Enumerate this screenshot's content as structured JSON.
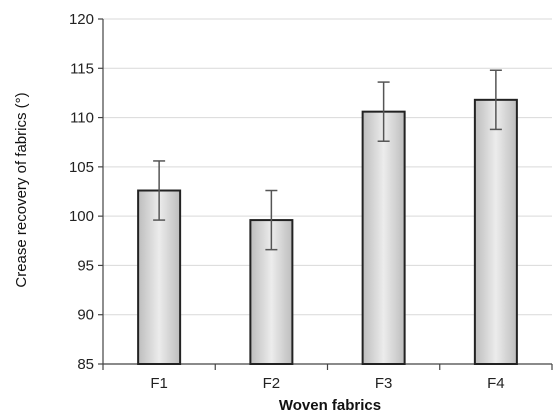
{
  "chart_data": {
    "type": "bar",
    "categories": [
      "F1",
      "F2",
      "F3",
      "F4"
    ],
    "values": [
      102.6,
      99.6,
      110.6,
      111.8
    ],
    "error": [
      3.0,
      3.0,
      3.0,
      3.0
    ],
    "title": "",
    "xlabel": "Woven fabrics",
    "ylabel": "Crease recovery of fabrics (°)",
    "ylim": [
      85,
      120
    ],
    "yticks": [
      85,
      90,
      95,
      100,
      105,
      110,
      115,
      120
    ],
    "grid": true,
    "bar_color": "#e6e6e6",
    "bar_edge_color": "#222222"
  }
}
